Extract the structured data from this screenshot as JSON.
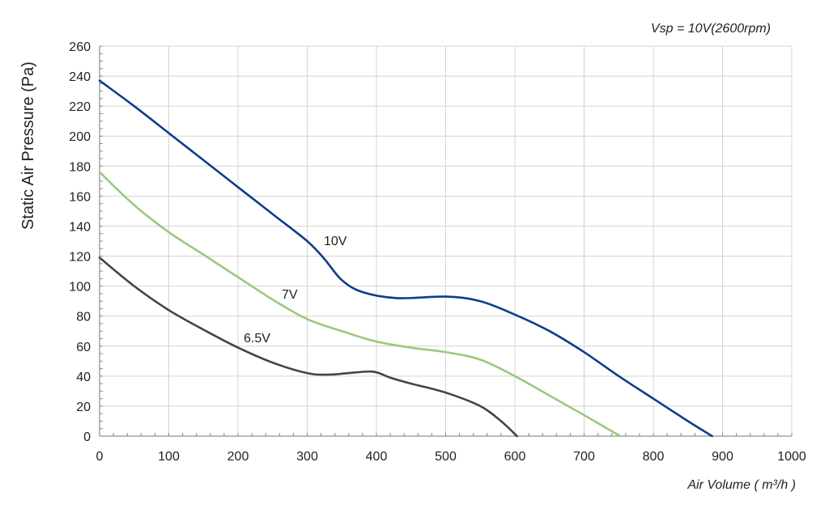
{
  "chart_data": {
    "type": "line",
    "title": "",
    "annotation": "Vsp = 10V(2600rpm)",
    "xlabel": "Air Volume ( m³/h )",
    "ylabel": "Static Air Pressure  (Pa)",
    "xlim": [
      0,
      1000
    ],
    "ylim": [
      0,
      260
    ],
    "x_ticks": [
      "0",
      "100",
      "200",
      "300",
      "400",
      "500",
      "600",
      "700",
      "800",
      "900",
      "1000"
    ],
    "y_ticks": [
      "0",
      "20",
      "40",
      "60",
      "80",
      "100",
      "120",
      "140",
      "160",
      "180",
      "200",
      "220",
      "240",
      "260"
    ],
    "grid": true,
    "series": [
      {
        "name": "10V",
        "color": "#0d3d8c",
        "points": [
          [
            0,
            237
          ],
          [
            50,
            220
          ],
          [
            100,
            202
          ],
          [
            150,
            184
          ],
          [
            200,
            166
          ],
          [
            250,
            148
          ],
          [
            300,
            130
          ],
          [
            325,
            118
          ],
          [
            350,
            104
          ],
          [
            380,
            96
          ],
          [
            430,
            92
          ],
          [
            500,
            93
          ],
          [
            550,
            90
          ],
          [
            600,
            81
          ],
          [
            650,
            70
          ],
          [
            700,
            56
          ],
          [
            750,
            40
          ],
          [
            800,
            25
          ],
          [
            850,
            10
          ],
          [
            885,
            0
          ]
        ]
      },
      {
        "name": "7V",
        "color": "#9cc87e",
        "points": [
          [
            0,
            176
          ],
          [
            50,
            154
          ],
          [
            100,
            136
          ],
          [
            150,
            121
          ],
          [
            200,
            106
          ],
          [
            250,
            91
          ],
          [
            300,
            78
          ],
          [
            350,
            70
          ],
          [
            400,
            63
          ],
          [
            450,
            59
          ],
          [
            500,
            56
          ],
          [
            550,
            51
          ],
          [
            600,
            40
          ],
          [
            650,
            27
          ],
          [
            700,
            14
          ],
          [
            752,
            0
          ]
        ]
      },
      {
        "name": "6.5V",
        "color": "#444444",
        "points": [
          [
            0,
            119
          ],
          [
            50,
            100
          ],
          [
            100,
            84
          ],
          [
            150,
            71
          ],
          [
            200,
            59
          ],
          [
            250,
            49
          ],
          [
            300,
            42
          ],
          [
            330,
            41
          ],
          [
            360,
            42
          ],
          [
            395,
            43
          ],
          [
            420,
            39
          ],
          [
            450,
            35
          ],
          [
            500,
            29
          ],
          [
            550,
            20
          ],
          [
            580,
            10
          ],
          [
            603,
            0
          ]
        ]
      }
    ]
  }
}
